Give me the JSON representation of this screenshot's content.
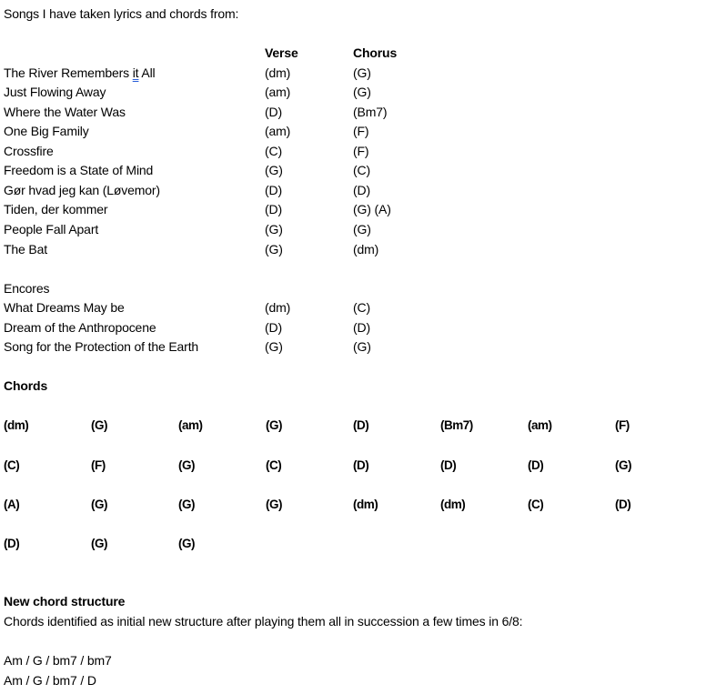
{
  "intro": "Songs I have taken lyrics and chords from:",
  "headers": {
    "verse": "Verse",
    "chorus": "Chorus"
  },
  "songs": [
    {
      "title_pre": "The River Remembers ",
      "title_flag": "it",
      "title_post": " All",
      "verse": "(dm)",
      "chorus": "(G)"
    },
    {
      "title": "Just Flowing Away",
      "verse": "(am)",
      "chorus": "(G)"
    },
    {
      "title": "Where the Water Was",
      "verse": "(D)",
      "chorus": "(Bm7)"
    },
    {
      "title": "One Big Family",
      "verse": "(am)",
      "chorus": "(F)"
    },
    {
      "title": "Crossfire",
      "verse": "(C)",
      "chorus": "(F)"
    },
    {
      "title": "Freedom is a State of Mind",
      "verse": "(G)",
      "chorus": "(C)"
    },
    {
      "title": "Gør hvad jeg kan (Løvemor)",
      "verse": "(D)",
      "chorus": "(D)"
    },
    {
      "title": "Tiden, der kommer",
      "verse": "(D)",
      "chorus": "(G) (A)"
    },
    {
      "title": "People Fall Apart",
      "verse": "(G)",
      "chorus": "(G)"
    },
    {
      "title": "The Bat",
      "verse": "(G)",
      "chorus": "(dm)"
    }
  ],
  "encores_label": "Encores",
  "encores": [
    {
      "title": "What Dreams May be",
      "verse": "(dm)",
      "chorus": "(C)"
    },
    {
      "title": "Dream of the Anthropocene",
      "verse": "(D)",
      "chorus": "(D)"
    },
    {
      "title": "Song for the Protection of the Earth",
      "verse": "(G)",
      "chorus": "(G)"
    }
  ],
  "chords_heading": "Chords",
  "chord_grid": [
    [
      "(dm)",
      "(G)",
      "(am)",
      "(G)",
      "(D)",
      "(Bm7)",
      "(am)",
      "(F)"
    ],
    [
      "(C)",
      "(F)",
      "(G)",
      "(C)",
      "(D)",
      "(D)",
      "(D)",
      "(G)"
    ],
    [
      "(A)",
      "(G)",
      "(G)",
      "(G)",
      "(dm)",
      "(dm)",
      "(C)",
      "(D)"
    ],
    [
      "(D)",
      "(G)",
      "(G)"
    ]
  ],
  "new_structure": {
    "heading": "New chord structure",
    "description": "Chords identified as initial new structure after playing them all in succession a few times in 6/8:",
    "lines": [
      "Am / G / bm7 / bm7",
      "Am / G / bm7 / D"
    ]
  }
}
